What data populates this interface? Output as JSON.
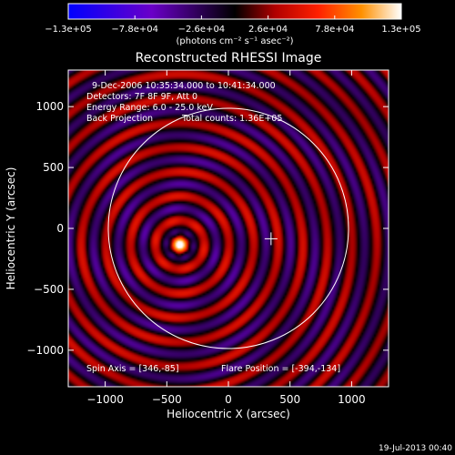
{
  "chart_data": {
    "type": "heatmap",
    "title": "Reconstructed RHESSI Image",
    "xlabel": "Heliocentric X (arcsec)",
    "ylabel": "Heliocentric Y (arcsec)",
    "xlim": [
      -1300,
      1300
    ],
    "ylim": [
      -1300,
      1300
    ],
    "xticks": [
      -1000,
      -500,
      0,
      500,
      1000
    ],
    "yticks": [
      -1000,
      -500,
      0,
      500,
      1000
    ],
    "xtick_labels": [
      "−1000",
      "−500",
      "0",
      "500",
      "1000"
    ],
    "ytick_labels": [
      "−1000",
      "−500",
      "0",
      "500",
      "1000"
    ],
    "colorbar": {
      "range": [
        -130000,
        130000
      ],
      "tick_values": [
        -130000,
        -78000,
        -26000,
        26000,
        78000,
        130000
      ],
      "tick_labels": [
        "−1.3e+05",
        "−7.8e+04",
        "−2.6e+04",
        "2.6e+04",
        "7.8e+04",
        "1.3e+05"
      ],
      "unit_label": "(photons cm⁻² s⁻¹ asec⁻²)",
      "colormap": [
        "#0000ff",
        "#6a00c8",
        "#000000",
        "#b00000",
        "#ff2000",
        "#ff9000",
        "#ffffff"
      ]
    },
    "annotations": [
      "9-Dec-2006 10:35:34.000 to 10:41:34.000",
      "Detectors: 7F 8F 9F, Att 0",
      "Energy Range: 6.0 - 25.0 keV",
      "Back Projection",
      "Total counts: 1.36E+05"
    ],
    "spin_axis_label": "Spin Axis = [346,-85]",
    "flare_position_label": "Flare Position = [-394,-134]",
    "source_center": [
      -394,
      -134
    ],
    "spin_axis": [
      346,
      -85
    ],
    "solar_disk_radius": 975,
    "ring_spacing": 200,
    "timestamp": "19-Jul-2013 00:40"
  }
}
